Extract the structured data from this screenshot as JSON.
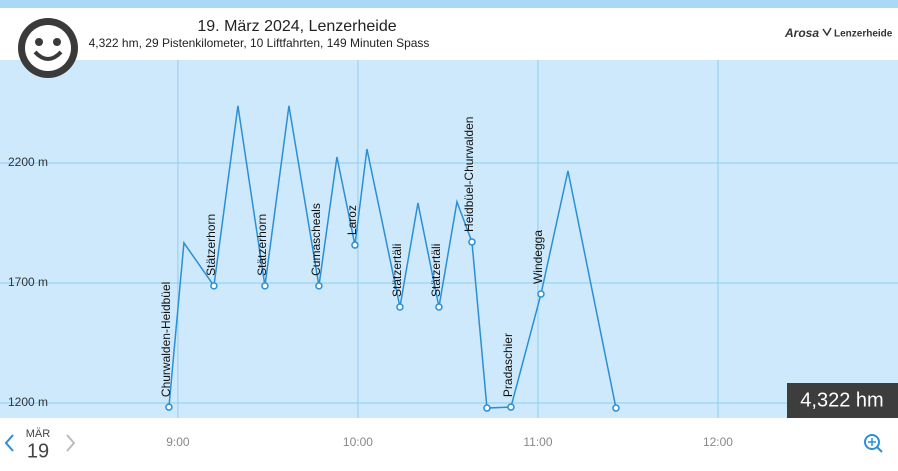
{
  "header": {
    "title": "19. März 2024, Lenzerheide",
    "subtitle": "4,322 hm, 29 Pistenkilometer, 10 Liftfahrten, 149 Minuten Spass",
    "logo_left": "Arosa",
    "logo_right": "Lenzerheide"
  },
  "chart_data": {
    "type": "line",
    "x": [
      537,
      542,
      552,
      560,
      569,
      577,
      587,
      593,
      599,
      603,
      614,
      620,
      627,
      633,
      638,
      643,
      651,
      661,
      670,
      686
    ],
    "values": [
      1183,
      1867,
      1688,
      2438,
      1688,
      2438,
      1688,
      2225,
      1858,
      2258,
      1600,
      2033,
      1600,
      2038,
      1871,
      1179,
      1183,
      1654,
      2167,
      1179
    ],
    "labels": [
      "Churwalden-Heidbüel",
      null,
      "Stätzerhorn",
      null,
      "Stätzerhorn",
      null,
      "Cumascheals",
      null,
      "Laroz",
      null,
      "Stätzertäli",
      null,
      "Stätzertäli",
      null,
      "Heidbüel-Churwalden",
      null,
      "Pradaschier",
      "Windegga",
      null,
      null
    ],
    "markers": [
      true,
      false,
      true,
      false,
      true,
      false,
      true,
      false,
      true,
      false,
      true,
      false,
      true,
      false,
      true,
      true,
      true,
      true,
      false,
      true
    ],
    "color": "#2b8fd6",
    "xlim": [
      480.7,
      780
    ],
    "ylim": [
      1137.5,
      2629
    ],
    "xticks": [
      {
        "value": 540,
        "label": "9:00"
      },
      {
        "value": 600,
        "label": "10:00"
      },
      {
        "value": 660,
        "label": "11:00"
      },
      {
        "value": 720,
        "label": "12:00"
      }
    ],
    "yticks": [
      {
        "value": 1200,
        "label": "1200 m"
      },
      {
        "value": 1700,
        "label": "1700 m"
      },
      {
        "value": 2200,
        "label": "2200 m"
      }
    ],
    "grid": true
  },
  "badge": "4,322 hm",
  "date": {
    "month": "MÄR",
    "day": "19"
  }
}
